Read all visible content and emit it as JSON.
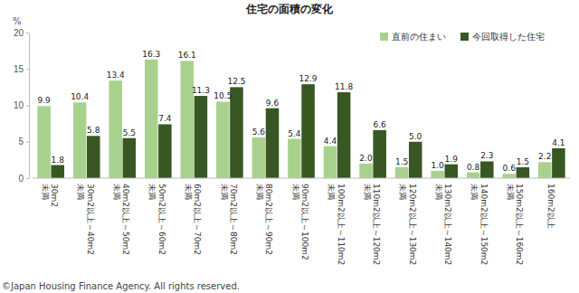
{
  "chart_data": {
    "type": "bar",
    "title": "住宅の面積の変化",
    "y_label": "%",
    "categories": [
      "30m2未満",
      "30m2以上～40m2未満",
      "40m2以上～50m2未満",
      "50m2以上～60m2未満",
      "60m2以上～70m2未満",
      "70m2以上～80m2未満",
      "80m2以上～90m2未満",
      "90m2以上～100m2未満",
      "100m2以上～110m2未満",
      "110m2以上～120m2未満",
      "120m2以上～130m2未満",
      "130m2以上～140m2未満",
      "140m2以上～150m2未満",
      "150m2以上～160m2未満",
      "160m2以上"
    ],
    "series": [
      {
        "name": "直前の住まい",
        "color": "#a9d18e",
        "values": [
          9.9,
          10.4,
          13.4,
          16.3,
          16.1,
          10.5,
          5.6,
          5.4,
          4.4,
          2.0,
          1.5,
          1.0,
          0.8,
          0.6,
          2.2
        ],
        "value_labels": [
          "9.9",
          "10.4",
          "13.4",
          "16.3",
          "16.1",
          "10.5",
          "5.6",
          "5.4",
          "4.4",
          "2.0",
          "1.5",
          "1.0",
          "0.8",
          "0.6",
          "2.2"
        ]
      },
      {
        "name": "今回取得した住宅",
        "color": "#385723",
        "values": [
          1.8,
          5.8,
          5.5,
          7.4,
          11.3,
          12.5,
          9.6,
          12.9,
          11.8,
          6.6,
          5.0,
          1.9,
          2.3,
          1.5,
          4.1
        ],
        "value_labels": [
          "1.8",
          "5.8",
          "5.5",
          "7.4",
          "11.3",
          "12.5",
          "9.6",
          "12.9",
          "11.8",
          "6.6",
          "5.0",
          "1.9",
          "2.3",
          "1.5",
          "4.1"
        ]
      }
    ],
    "ylim": [
      0,
      20
    ],
    "yticks": [
      0,
      5,
      10,
      15,
      20
    ],
    "grid": false,
    "legend": "top-right",
    "data_labels": true,
    "annotations": [
      "©Japan Housing Finance Agency. All rights reserved."
    ]
  }
}
